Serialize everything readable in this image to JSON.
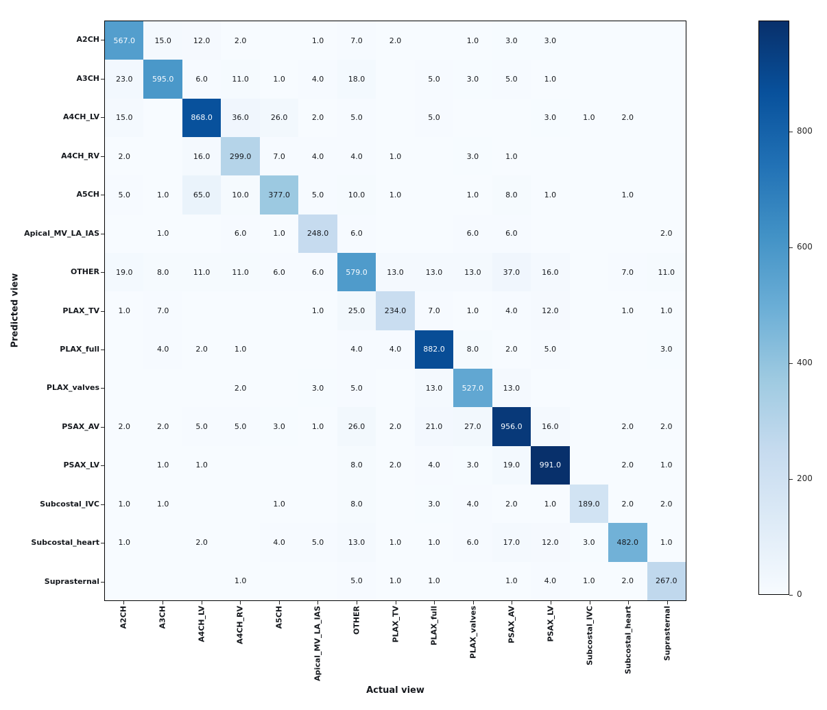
{
  "chart_data": {
    "type": "heatmap",
    "subtype": "confusion-matrix",
    "title": "",
    "xlabel": "Actual view",
    "ylabel": "Predicted view",
    "x_tick_labels": [
      "A2CH",
      "A3CH",
      "A4CH_LV",
      "A4CH_RV",
      "A5CH",
      "Apical_MV_LA_IAS",
      "OTHER",
      "PLAX_TV",
      "PLAX_full",
      "PLAX_valves",
      "PSAX_AV",
      "PSAX_LV",
      "Subcostal_IVC",
      "Subcostal_heart",
      "Suprasternal"
    ],
    "y_tick_labels": [
      "A2CH",
      "A3CH",
      "A4CH_LV",
      "A4CH_RV",
      "A5CH",
      "Apical_MV_LA_IAS",
      "OTHER",
      "PLAX_TV",
      "PLAX_full",
      "PLAX_valves",
      "PSAX_AV",
      "PSAX_LV",
      "Subcostal_IVC",
      "Subcostal_heart",
      "Suprasternal"
    ],
    "matrix": [
      [
        567,
        15,
        12,
        2,
        null,
        1,
        7,
        2,
        null,
        1,
        3,
        3,
        null,
        null,
        null
      ],
      [
        23,
        595,
        6,
        11,
        1,
        4,
        18,
        null,
        5,
        3,
        5,
        1,
        null,
        null,
        null
      ],
      [
        15,
        null,
        868,
        36,
        26,
        2,
        5,
        null,
        5,
        null,
        null,
        3,
        1,
        2,
        null
      ],
      [
        2,
        null,
        16,
        299,
        7,
        4,
        4,
        1,
        null,
        3,
        1,
        null,
        null,
        null,
        null
      ],
      [
        5,
        1,
        65,
        10,
        377,
        5,
        10,
        1,
        null,
        1,
        8,
        1,
        null,
        1,
        null
      ],
      [
        null,
        1,
        null,
        6,
        1,
        248,
        6,
        null,
        null,
        6,
        6,
        null,
        null,
        null,
        2
      ],
      [
        19,
        8,
        11,
        11,
        6,
        6,
        579,
        13,
        13,
        13,
        37,
        16,
        null,
        7,
        11
      ],
      [
        1,
        7,
        null,
        null,
        null,
        1,
        25,
        234,
        7,
        1,
        4,
        12,
        null,
        1,
        1
      ],
      [
        null,
        4,
        2,
        1,
        null,
        null,
        4,
        4,
        882,
        8,
        2,
        5,
        null,
        null,
        3
      ],
      [
        null,
        null,
        null,
        2,
        null,
        3,
        5,
        null,
        13,
        527,
        13,
        null,
        null,
        null,
        null
      ],
      [
        2,
        2,
        5,
        5,
        3,
        1,
        26,
        2,
        21,
        27,
        956,
        16,
        null,
        2,
        2
      ],
      [
        null,
        1,
        1,
        null,
        null,
        null,
        8,
        2,
        4,
        3,
        19,
        991,
        null,
        2,
        1
      ],
      [
        1,
        1,
        null,
        null,
        1,
        null,
        8,
        null,
        3,
        4,
        2,
        1,
        189,
        2,
        2
      ],
      [
        1,
        null,
        2,
        null,
        4,
        5,
        13,
        1,
        1,
        6,
        17,
        12,
        3,
        482,
        1
      ],
      [
        null,
        null,
        null,
        1,
        null,
        null,
        5,
        1,
        1,
        null,
        1,
        4,
        1,
        2,
        267
      ]
    ],
    "cell_value_decimals": 1,
    "vmin": 0,
    "vmax": 991,
    "colormap": "Blues",
    "colormap_anchors": [
      "#f7fbff",
      "#deebf7",
      "#c6dbef",
      "#9ecae1",
      "#6baed6",
      "#4292c6",
      "#2171b5",
      "#08519c",
      "#08306b"
    ],
    "text_color_dark": "#15181d",
    "text_color_light": "#f7fbff",
    "colorbar_ticks": [
      0,
      200,
      400,
      600,
      800
    ],
    "colorbar_position": "right",
    "grid": false
  }
}
